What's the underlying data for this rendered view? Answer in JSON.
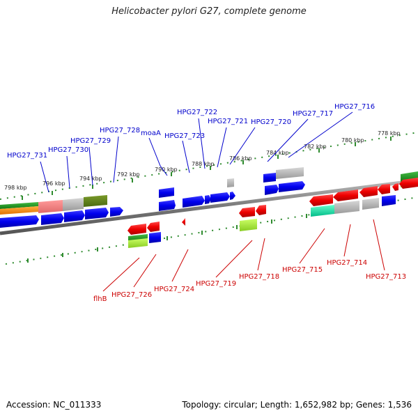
{
  "title": "Helicobacter pylori G27, complete genome",
  "footer": {
    "accession": "Accession: NC_011333",
    "topology": "Topology: circular; Length: 1,652,982 bp; Genes: 1,536"
  },
  "colors": {
    "forward_label": "#0000cc",
    "reverse_label": "#cc0000",
    "tick": "#2e8b2e",
    "backbone": "#888888"
  },
  "kbp_labels": [
    "798 kbp",
    "796 kbp",
    "794 kbp",
    "792 kbp",
    "790 kbp",
    "788 kbp",
    "786 kbp",
    "784 kbp",
    "782 kbp",
    "780 kbp",
    "778 kbp"
  ],
  "forward_genes": [
    "HPG27_731",
    "HPG27_730",
    "HPG27_729",
    "HPG27_728",
    "moaA",
    "HPG27_723",
    "HPG27_722",
    "HPG27_721",
    "HPG27_720",
    "HPG27_717",
    "HPG27_716"
  ],
  "reverse_genes": [
    "flhB",
    "HPG27_726",
    "HPG27_724",
    "HPG27_719",
    "HPG27_718",
    "HPG27_715",
    "HPG27_714",
    "HPG27_713"
  ]
}
